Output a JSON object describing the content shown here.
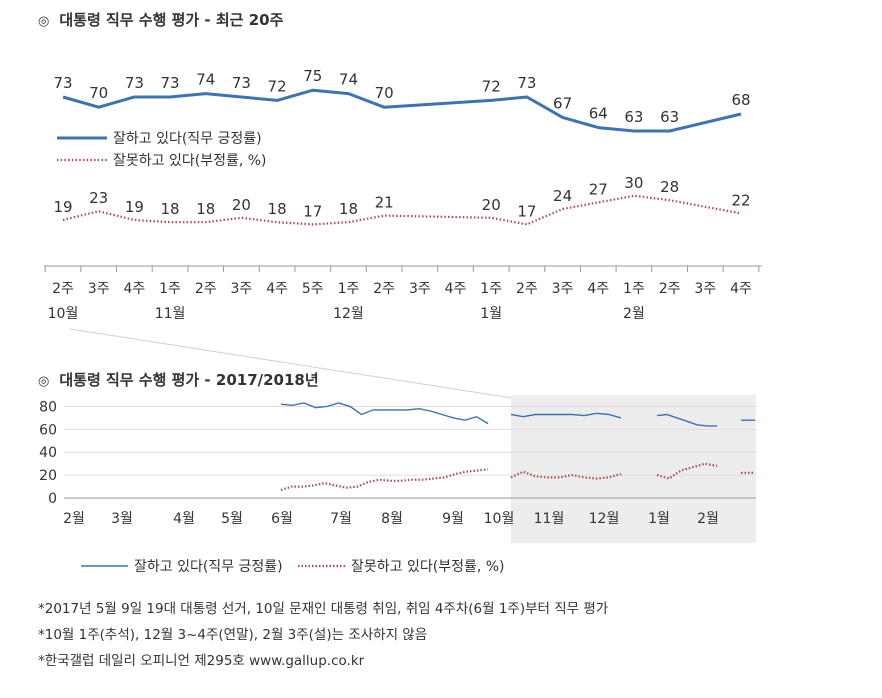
{
  "colors": {
    "approve": "#3c73b4",
    "disapprove": "#b04a4a",
    "shade": "#ededed",
    "axis": "#999999"
  },
  "chart_data": [
    {
      "type": "line",
      "title": "대통령 직무 수행 평가 - 최근 20주",
      "title_mark": "◎",
      "categories": [
        "2주",
        "3주",
        "4주",
        "1주",
        "2주",
        "3주",
        "4주",
        "5주",
        "1주",
        "2주",
        "3주",
        "4주",
        "1주",
        "2주",
        "3주",
        "4주",
        "1주",
        "2주",
        "3주",
        "4주"
      ],
      "month_labels": [
        {
          "index": 0,
          "text": "10월"
        },
        {
          "index": 3,
          "text": "11월"
        },
        {
          "index": 8,
          "text": "12월"
        },
        {
          "index": 12,
          "text": "1월"
        },
        {
          "index": 16,
          "text": "2월"
        }
      ],
      "series": [
        {
          "name": "잘하고 있다(직무 긍정률)",
          "style": "solid",
          "values": [
            73,
            70,
            73,
            73,
            74,
            73,
            72,
            75,
            74,
            70,
            null,
            null,
            72,
            73,
            67,
            64,
            63,
            63,
            null,
            68
          ]
        },
        {
          "name": "잘못하고 있다(부정률, %)",
          "style": "dotted",
          "values": [
            19,
            23,
            19,
            18,
            18,
            20,
            18,
            17,
            18,
            21,
            null,
            null,
            20,
            17,
            24,
            27,
            30,
            28,
            null,
            22
          ]
        }
      ],
      "legend": [
        "잘하고 있다(직무 긍정률)",
        "잘못하고 있다(부정률, %)"
      ]
    },
    {
      "type": "line",
      "title": "대통령 직무 수행 평가 - 2017/2018년",
      "title_mark": "◎",
      "yticks": [
        0,
        20,
        40,
        60,
        80
      ],
      "ylim": [
        0,
        90
      ],
      "month_ticks": [
        "2월",
        "3월",
        "4월",
        "5월",
        "6월",
        "7월",
        "8월",
        "9월",
        "10월",
        "11월",
        "12월",
        "1월",
        "2월"
      ],
      "series": [
        {
          "name": "잘하고 있다(직무 긍정률)",
          "segments": [
            [
              82,
              81,
              83,
              79,
              80,
              83,
              80,
              73,
              77,
              77,
              77,
              77,
              78,
              76,
              73,
              70,
              68,
              71,
              65
            ],
            [
              73,
              71,
              73,
              73,
              73,
              73,
              72,
              74,
              73,
              70
            ],
            [
              72,
              73,
              70,
              67,
              64,
              63,
              63
            ],
            [
              68,
              68
            ]
          ]
        },
        {
          "name": "잘못하고 있다(부정률, %)",
          "segments": [
            [
              7,
              10,
              10,
              11,
              13,
              11,
              9,
              10,
              14,
              16,
              15,
              15,
              16,
              16,
              17,
              18,
              21,
              23,
              24,
              25
            ],
            [
              18,
              23,
              19,
              18,
              18,
              20,
              18,
              17,
              18,
              21
            ],
            [
              20,
              17,
              24,
              27,
              30,
              28
            ],
            [
              22,
              22
            ]
          ]
        }
      ],
      "legend": [
        "잘하고 있다(직무 긍정률)",
        "잘못하고 있다(부정률, %)"
      ]
    }
  ],
  "footnotes": [
    "*2017년 5월 9일 19대 대통령 선거, 10일 문재인 대통령 취임, 취임 4주차(6월 1주)부터 직무 평가",
    "*10월 1주(추석), 12월 3~4주(연말), 2월 3주(설)는 조사하지 않음",
    "*한국갤럽 데일리 오피니언 제295호 www.gallup.co.kr"
  ]
}
